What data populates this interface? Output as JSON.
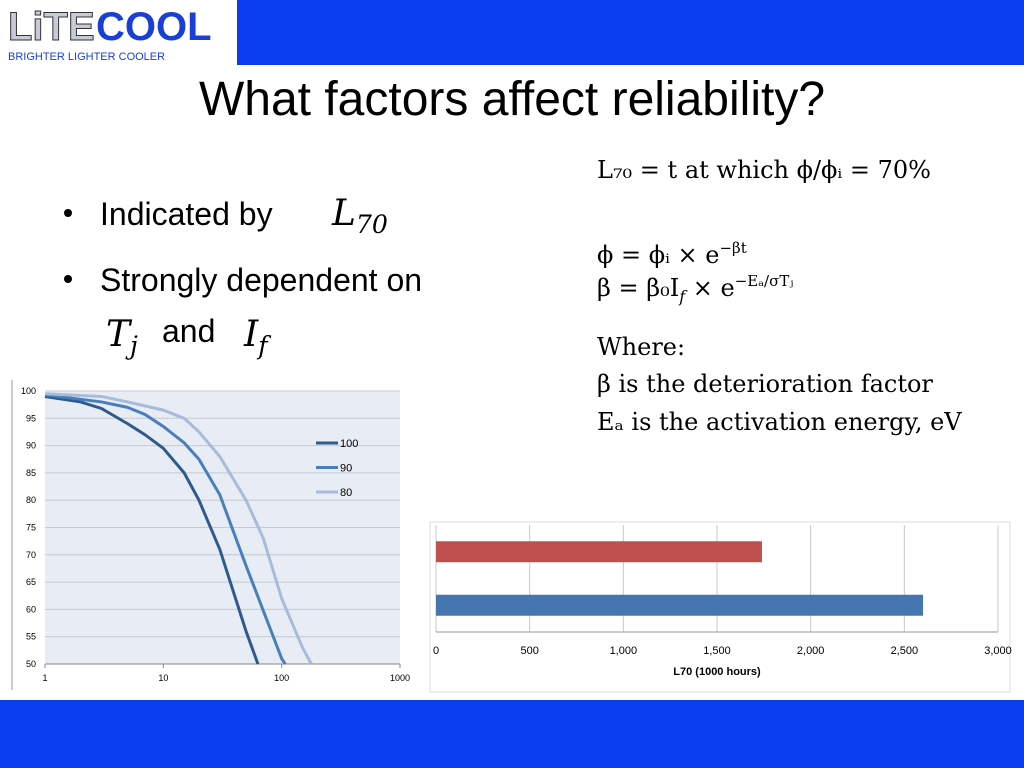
{
  "logo": {
    "brand_a": "LiTE",
    "brand_b": "COOL",
    "tagline": "BRIGHTER  LIGHTER  COOLER"
  },
  "title": "What factors affect reliability?",
  "bullets": [
    {
      "text": "Indicated by",
      "math": [
        {
          "base": "L",
          "sub": "70"
        }
      ]
    },
    {
      "text": "Strongly dependent on",
      "math": [
        {
          "base": "T",
          "sub": "j"
        },
        {
          "base": "I",
          "sub": "f"
        }
      ],
      "joiner": "and"
    }
  ],
  "equations": [
    {
      "text": "L₇₀ = t at which ϕ/ϕᵢ = 70%"
    },
    {
      "text": "ϕ = ϕᵢ × e",
      "sup": "−βt"
    },
    {
      "text": "β = β₀I",
      "sub": "f",
      "tail": " × e",
      "sup": "−Eₐ/σTⱼ"
    },
    {
      "text": "Where:"
    },
    {
      "text": "β is the deterioration factor"
    },
    {
      "text": "Eₐ is the activation energy, eV"
    }
  ],
  "chart_data": [
    {
      "type": "line",
      "log_x": true,
      "grid": true,
      "legend": "right",
      "xlim": [
        1,
        1000
      ],
      "xticks": [
        1,
        10,
        100,
        1000
      ],
      "ylim": [
        50,
        100
      ],
      "yticks": [
        50,
        55,
        60,
        65,
        70,
        75,
        80,
        85,
        90,
        95,
        100
      ],
      "series": [
        {
          "name": "100",
          "color": "#2f5a8c",
          "x": [
            1,
            2,
            3,
            5,
            7,
            10,
            15,
            20,
            30,
            50,
            63
          ],
          "values": [
            99,
            98,
            96.8,
            94,
            92,
            89.5,
            85,
            80,
            71,
            56,
            50
          ]
        },
        {
          "name": "90",
          "color": "#4a7ebb",
          "x": [
            1,
            3,
            5,
            7,
            10,
            15,
            20,
            30,
            50,
            100,
            107
          ],
          "values": [
            99.3,
            98,
            97,
            95.7,
            93.5,
            90.5,
            87.5,
            81,
            68,
            51,
            50
          ]
        },
        {
          "name": "80",
          "color": "#a7bcdb",
          "x": [
            1,
            3,
            5,
            10,
            15,
            20,
            30,
            50,
            70,
            100,
            150,
            178
          ],
          "values": [
            99.5,
            99,
            98,
            96.5,
            95,
            92.5,
            88,
            80,
            73,
            62,
            53,
            50
          ]
        }
      ]
    },
    {
      "type": "hbar",
      "grid": true,
      "xlabel": "L70 (1000 hours)",
      "categories": [
        null,
        null
      ],
      "values": [
        1740,
        2600
      ],
      "colors": [
        "#c0504d",
        "#4676b0"
      ],
      "xlim": [
        0,
        3000
      ],
      "xticks": [
        0,
        500,
        {
          "value": 1000,
          "label": "1,000"
        },
        {
          "value": 1500,
          "label": "1,500"
        },
        {
          "value": 2000,
          "label": "2,000"
        },
        {
          "value": 2500,
          "label": "2,500"
        },
        {
          "value": 3000,
          "label": "3,000"
        }
      ]
    }
  ]
}
